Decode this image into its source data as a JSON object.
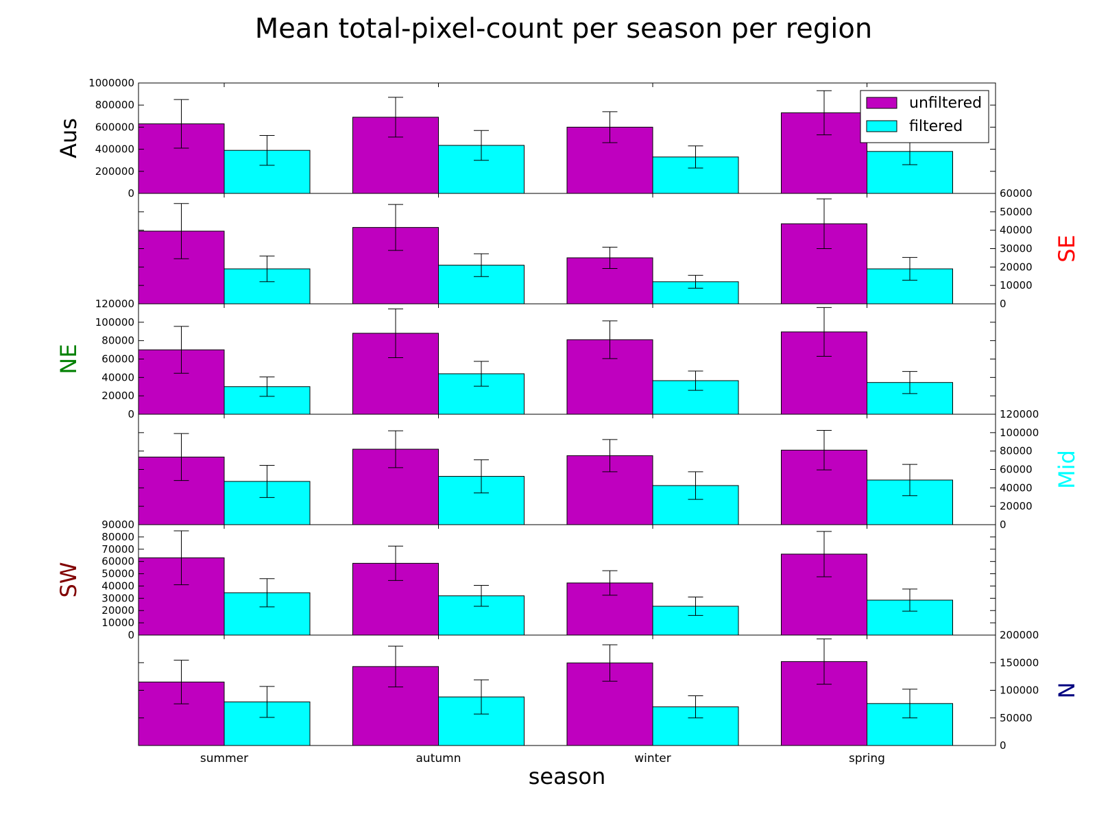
{
  "chart_data": {
    "type": "bar",
    "title": "Mean total-pixel-count per season per region",
    "xlabel": "season",
    "categories": [
      "summer",
      "autumn",
      "winter",
      "spring"
    ],
    "series_names": [
      "unfiltered",
      "filtered"
    ],
    "colors": {
      "unfiltered": "#bf00bf",
      "filtered": "#00ffff"
    },
    "legend_position": "top-right",
    "panels": [
      {
        "region": "Aus",
        "label_color": "#000000",
        "axis_side": "left",
        "ylim": [
          0,
          1000000
        ],
        "yticks": [
          "0",
          "200000",
          "400000",
          "600000",
          "800000",
          "1000000"
        ],
        "series": [
          {
            "name": "unfiltered",
            "values": [
              630000,
              690000,
              600000,
              730000
            ],
            "errors": [
              220000,
              180000,
              140000,
              200000
            ]
          },
          {
            "name": "filtered",
            "values": [
              390000,
              435000,
              330000,
              380000
            ],
            "errors": [
              135000,
              135000,
              100000,
              120000
            ]
          }
        ]
      },
      {
        "region": "SE",
        "label_color": "#ff0000",
        "axis_side": "right",
        "ylim": [
          0,
          60000
        ],
        "yticks": [
          "0",
          "10000",
          "20000",
          "30000",
          "40000",
          "50000",
          "60000"
        ],
        "series": [
          {
            "name": "unfiltered",
            "values": [
              39500,
              41500,
              25000,
              43500
            ],
            "errors": [
              15000,
              12500,
              5800,
              13500
            ]
          },
          {
            "name": "filtered",
            "values": [
              19000,
              21000,
              12000,
              19000
            ],
            "errors": [
              7000,
              6200,
              3500,
              6200
            ]
          }
        ]
      },
      {
        "region": "NE",
        "label_color": "#008000",
        "axis_side": "left",
        "ylim": [
          0,
          120000
        ],
        "yticks": [
          "0",
          "20000",
          "40000",
          "60000",
          "80000",
          "100000",
          "120000"
        ],
        "series": [
          {
            "name": "unfiltered",
            "values": [
              70000,
              88000,
              81000,
              89500
            ],
            "errors": [
              25500,
              26500,
              20500,
              26500
            ]
          },
          {
            "name": "filtered",
            "values": [
              30000,
              44000,
              36500,
              34500
            ],
            "errors": [
              10500,
              13500,
              10500,
              12000
            ]
          }
        ]
      },
      {
        "region": "Mid",
        "label_color": "#00ffff",
        "axis_side": "right",
        "ylim": [
          0,
          120000
        ],
        "yticks": [
          "0",
          "20000",
          "40000",
          "60000",
          "80000",
          "100000",
          "120000"
        ],
        "series": [
          {
            "name": "unfiltered",
            "values": [
              73500,
              82000,
              75000,
              81000
            ],
            "errors": [
              25500,
              20000,
              17500,
              21500
            ]
          },
          {
            "name": "filtered",
            "values": [
              47000,
              52500,
              42500,
              48500
            ],
            "errors": [
              17500,
              18000,
              15000,
              17000
            ]
          }
        ]
      },
      {
        "region": "SW",
        "label_color": "#800000",
        "axis_side": "left",
        "ylim": [
          0,
          90000
        ],
        "yticks": [
          "0",
          "10000",
          "20000",
          "30000",
          "40000",
          "50000",
          "60000",
          "70000",
          "80000",
          "90000"
        ],
        "series": [
          {
            "name": "unfiltered",
            "values": [
              63000,
              58500,
              42500,
              66000
            ],
            "errors": [
              22000,
              14000,
              10000,
              18500
            ]
          },
          {
            "name": "filtered",
            "values": [
              34500,
              32000,
              23500,
              28500
            ],
            "errors": [
              11500,
              8500,
              7500,
              9000
            ]
          }
        ]
      },
      {
        "region": "N",
        "label_color": "#000080",
        "axis_side": "right",
        "ylim": [
          0,
          200000
        ],
        "yticks": [
          "0",
          "50000",
          "100000",
          "150000",
          "200000"
        ],
        "series": [
          {
            "name": "unfiltered",
            "values": [
              115000,
              143000,
              149500,
              152000
            ],
            "errors": [
              39500,
              37000,
              33000,
              41000
            ]
          },
          {
            "name": "filtered",
            "values": [
              79000,
              88000,
              70000,
              76000
            ],
            "errors": [
              28000,
              31000,
              20000,
              26000
            ]
          }
        ]
      }
    ]
  }
}
